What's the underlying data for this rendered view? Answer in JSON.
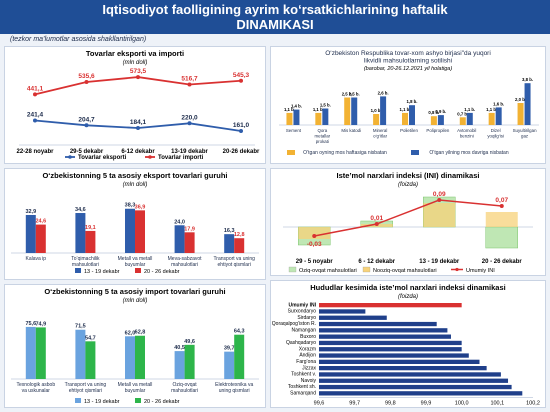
{
  "header": {
    "line1": "Iqtisodiyot faolligining ayrim ko‘rsatkichlarining haftalik",
    "line2": "DINAMIKASI",
    "note": "(tezkor ma’lumotlar asosida shakllantirilgan)"
  },
  "colors": {
    "blue": "#2f5dab",
    "red": "#d93131",
    "lightblue": "#6aa3df",
    "green": "#2db54a",
    "orange": "#f2b233",
    "greenfill": "#bfe7b4"
  },
  "chart_data": [
    {
      "type": "line",
      "title": "Tovarlar eksporti va importi",
      "unit": "(mln doll)",
      "categories": [
        "22-28 noyabr",
        "29-5 dekabr",
        "6-12 dekabr",
        "13-19 dekabr",
        "20-26 dekabr"
      ],
      "series": [
        {
          "name": "Tovarlar eksporti",
          "values": [
            241.4,
            204.7,
            184.1,
            220.0,
            161.0
          ],
          "labels": [
            "241,4",
            "204,7",
            "184,1",
            "220,0",
            "161,0"
          ]
        },
        {
          "name": "Tovarlar importi",
          "values": [
            441.1,
            535.6,
            573.5,
            516.7,
            545.3
          ],
          "labels": [
            "441,1",
            "535,6",
            "573,5",
            "516,7",
            "545,3"
          ]
        }
      ]
    },
    {
      "type": "bar",
      "title": "O‘zbekiston Respublika tovar-xom ashyo birjasi\"da yuqori likvidli mahsulotlarning sotilishi",
      "unit": "(barobar, 20-26.12.2021 yil holatiga)",
      "categories": [
        "Sement",
        "Qora metallar prokati",
        "Mis katodi",
        "Mineral o‘g‘itlar",
        "Polietilen",
        "Polipropilen",
        "Avtomobil benzini",
        "Dizel yoqilg‘isi",
        "Suyultirilgan gaz"
      ],
      "series": [
        {
          "name": "O‘tgan oyning mos haftasiga nisbatan",
          "values": [
            1.1,
            1.1,
            2.5,
            1.0,
            1.1,
            0.8,
            0.7,
            1.1,
            2.0
          ]
        },
        {
          "name": "O‘tgan yilning mos davriga nisbatan",
          "values": [
            1.4,
            1.5,
            2.5,
            2.6,
            1.8,
            0.9,
            1.1,
            1.6,
            3.8
          ]
        }
      ],
      "value_labels": [
        [
          "1,1 b.",
          "1,1 b.",
          "2,5 b.",
          "1,0 b.",
          "1,1 b.",
          "0,8 b.",
          "0,7 b.",
          "1,1 b.",
          "2,0 b."
        ],
        [
          "1,4 b.",
          "1,5 b.",
          "2,5 b.",
          "2,6 b.",
          "1,8 b.",
          "0,9 b.",
          "1,1 b.",
          "1,6 b.",
          "3,8 b."
        ]
      ]
    },
    {
      "type": "bar",
      "title": "Iste’mol narxlari indeksi (INI) dinamikasi",
      "unit": "(foizda)",
      "categories": [
        "29 - 5 noyabr",
        "6 - 12 dekabr",
        "13 - 19 dekabr",
        "20 - 26 dekabr"
      ],
      "series": [
        {
          "name": "Oziq-ovqat mahsulotlari",
          "values": [
            -0.06,
            0.02,
            0.1,
            -0.07
          ]
        },
        {
          "name": "Nooziq-ovqat mahsulotlari",
          "values": [
            -0.04,
            0.01,
            0.08,
            0.05
          ]
        },
        {
          "name": "Umumiy INI",
          "values": [
            -0.03,
            0.01,
            0.09,
            0.07
          ],
          "labels": [
            "-0,03",
            "0,01",
            "0,09",
            "0,07"
          ]
        }
      ]
    },
    {
      "type": "bar",
      "title": "O‘zbekistonning 5 ta asosiy eksport tovarlari guruhi",
      "unit": "(mln doll)",
      "categories": [
        "Kalava ip",
        "To‘qimachilik mahsulotlari",
        "Metall va metall buyumlar",
        "Meva-sabzavot mahsulotlari",
        "Transport va uning ehtiyot qismlari"
      ],
      "series": [
        {
          "name": "13 - 19 dekabr",
          "values": [
            32.9,
            34.6,
            38.3,
            24.0,
            16.3
          ],
          "labels": [
            "32,9",
            "34,6",
            "38,3",
            "24,0",
            "16,3"
          ]
        },
        {
          "name": "20 - 26 dekabr",
          "values": [
            24.6,
            19.1,
            36.9,
            17.9,
            12.8
          ],
          "labels": [
            "24,6",
            "19,1",
            "36,9",
            "17,9",
            "12,8"
          ]
        }
      ]
    },
    {
      "type": "bar",
      "title": "O‘zbekistonning 5 ta asosiy import tovarlari guruhi",
      "unit": "(mln doll)",
      "categories": [
        "Texnologik asbob va uskunalar",
        "Transport va uning ehtiyot qismlari",
        "Metall va metall buyumlar",
        "Oziq-ovqat mahsulotlari",
        "Elektrotexnika va uning qismlari"
      ],
      "series": [
        {
          "name": "13 - 19 dekabr",
          "values": [
            75.6,
            71.5,
            62.0,
            40.5,
            39.7
          ],
          "labels": [
            "75,6",
            "71,5",
            "62,0",
            "40,5",
            "39,7"
          ]
        },
        {
          "name": "20 - 26 dekabr",
          "values": [
            74.9,
            54.7,
            62.8,
            49.6,
            64.3
          ],
          "labels": [
            "74,9",
            "54,7",
            "62,8",
            "49,6",
            "64,3"
          ]
        }
      ]
    },
    {
      "type": "bar",
      "title": "Hududlar kesimida iste’mol narxlari indeksi dinamikasi",
      "unit": "(foizda)",
      "categories": [
        "Umumiy INI",
        "Surxondaryo",
        "Sirdaryo",
        "Qoraqalpog‘iston R.",
        "Namangan",
        "Buxoro",
        "Qashqadaryo",
        "Xorazm",
        "Andijon",
        "Farg‘ona",
        "Jizzax",
        "Toshkent v.",
        "Navoiy",
        "Toshkent sh.",
        "Samarqand"
      ],
      "values": [
        100.0,
        99.73,
        99.79,
        99.93,
        99.96,
        99.97,
        100.0,
        100.0,
        100.02,
        100.05,
        100.07,
        100.11,
        100.13,
        100.14,
        100.17
      ],
      "xlim": [
        99.6,
        100.2
      ],
      "xticks": [
        "99,6",
        "99,7",
        "99,8",
        "99,9",
        "100,0",
        "100,1",
        "100,2"
      ]
    }
  ]
}
